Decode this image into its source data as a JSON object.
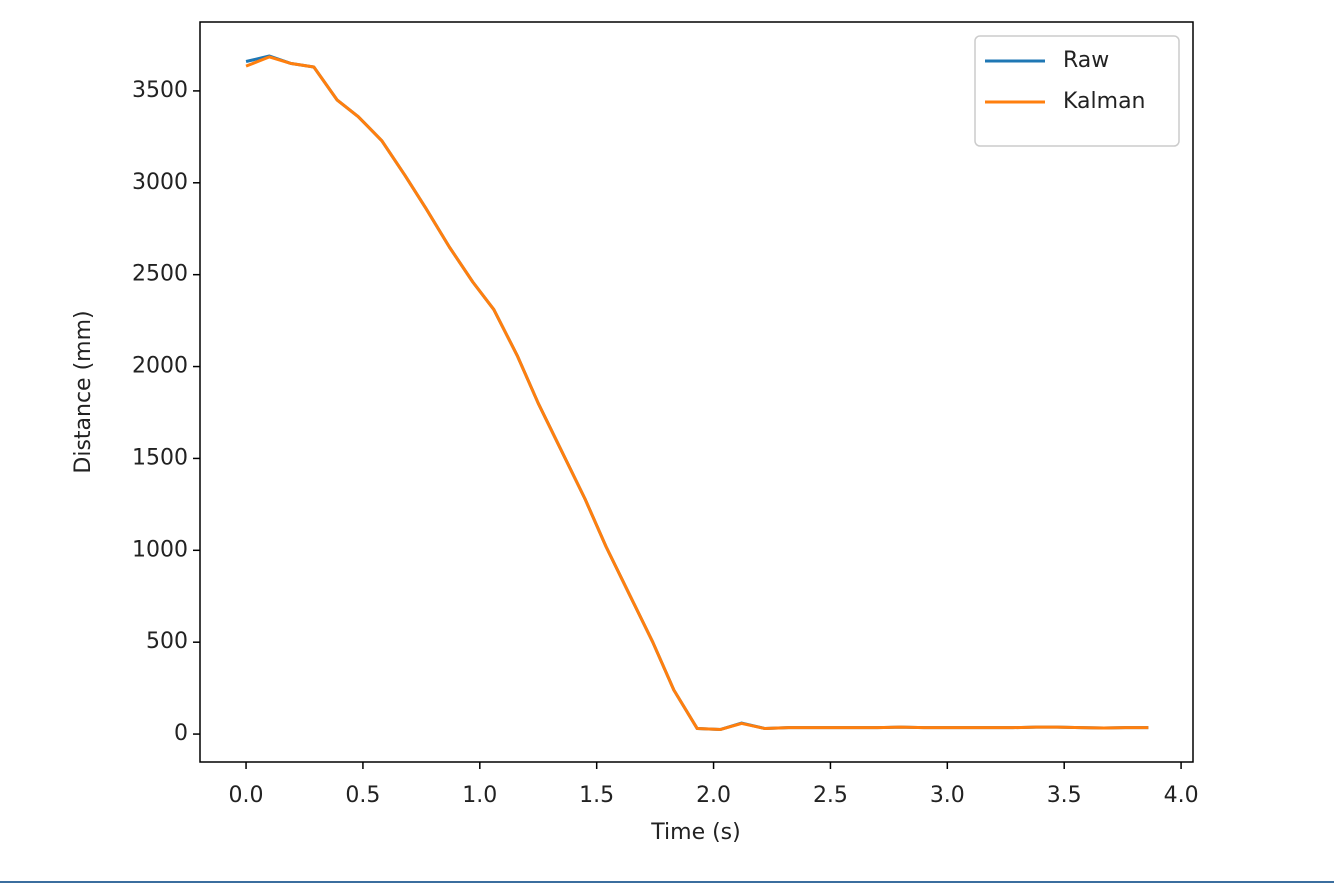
{
  "chart_data": {
    "type": "line",
    "x_label": "Time (s)",
    "y_label": "Distance (mm)",
    "x": [
      0,
      0.1,
      0.19,
      0.29,
      0.39,
      0.48,
      0.58,
      0.68,
      0.77,
      0.87,
      0.97,
      1.06,
      1.16,
      1.25,
      1.35,
      1.45,
      1.54,
      1.64,
      1.74,
      1.83,
      1.93,
      2.03,
      2.12,
      2.22,
      2.32,
      2.41,
      2.51,
      2.61,
      2.7,
      2.8,
      2.9,
      2.99,
      3.09,
      3.19,
      3.28,
      3.38,
      3.47,
      3.57,
      3.67,
      3.76,
      3.86
    ],
    "series": [
      {
        "name": "Raw",
        "color": "#1f77b4",
        "values": [
          3660,
          3690,
          3650,
          3630,
          3450,
          3360,
          3230,
          3040,
          2860,
          2650,
          2460,
          2310,
          2060,
          1800,
          1540,
          1280,
          1020,
          760,
          500,
          240,
          30,
          25,
          60,
          30,
          35,
          35,
          35,
          35,
          35,
          38,
          35,
          35,
          35,
          35,
          35,
          38,
          38,
          35,
          33,
          35,
          35
        ]
      },
      {
        "name": "Kalman",
        "color": "#ff7f0e",
        "values": [
          3635,
          3685,
          3650,
          3630,
          3450,
          3360,
          3230,
          3040,
          2860,
          2650,
          2460,
          2310,
          2060,
          1800,
          1540,
          1280,
          1020,
          760,
          500,
          240,
          30,
          25,
          58,
          30,
          35,
          35,
          35,
          35,
          35,
          38,
          35,
          35,
          35,
          35,
          35,
          38,
          38,
          35,
          33,
          35,
          35
        ]
      }
    ],
    "xlim": [
      -0.197,
      4.051
    ],
    "ylim": [
      -152,
      3875
    ],
    "xticks": [
      {
        "value": 0,
        "label": "0.0"
      },
      0.5,
      {
        "value": 1,
        "label": "1.0"
      },
      1.5,
      {
        "value": 2,
        "label": "2.0"
      },
      2.5,
      {
        "value": 3,
        "label": "3.0"
      },
      3.5,
      {
        "value": 4,
        "label": "4.0"
      }
    ],
    "yticks": [
      0,
      500,
      1000,
      1500,
      2000,
      2500,
      3000,
      3500
    ],
    "legend": "upper right"
  }
}
